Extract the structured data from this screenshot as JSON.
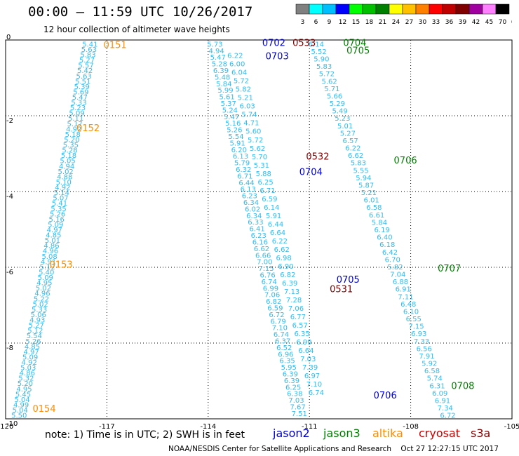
{
  "header": {
    "title": "00:00 – 11:59 UTC 10/26/2017",
    "subtitle": "12 hour collection of altimeter wave heights"
  },
  "colorbar": {
    "colors": [
      "#808080",
      "#00ffff",
      "#00bfff",
      "#0000ff",
      "#00ff00",
      "#00c000",
      "#008000",
      "#ffff00",
      "#ffc000",
      "#ff8000",
      "#ff0000",
      "#c00000",
      "#800000",
      "#a000a0",
      "#ff80ff",
      "#000000"
    ],
    "labels": [
      "3",
      "6",
      "9",
      "12",
      "15",
      "18",
      "21",
      "24",
      "27",
      "30",
      "33",
      "36",
      "39",
      "42",
      "45",
      "70",
      "(ft)"
    ]
  },
  "satellites": [
    {
      "name": "jason2",
      "color": "#0000cc"
    },
    {
      "name": "jason3",
      "color": "#008000"
    },
    {
      "name": "altika",
      "color": "#ff8c00"
    },
    {
      "name": "cryosat",
      "color": "#cc0000"
    },
    {
      "name": "s3a",
      "color": "#800000"
    }
  ],
  "footer": {
    "note": "note:  1) Time is in UTC;  2) SWH is in feet",
    "credit": "NOAA/NESDIS Center for Satellite Applications and Research    Oct 27 12:27:15 UTC 2017"
  },
  "chart_data": {
    "type": "scatter",
    "xlim": [
      -120,
      -105
    ],
    "ylim": [
      -10,
      0
    ],
    "x_ticks": [
      -120,
      -117,
      -114,
      -111,
      -108,
      -105
    ],
    "y_ticks": [
      0,
      -2,
      -4,
      -6,
      -8,
      -10
    ],
    "grid": true,
    "track_point_color": "#33bbee",
    "tracks": [
      {
        "name": "altika-left",
        "lon0": -117.5,
        "lat0": -0.1,
        "lon1": -119.6,
        "lat1": -9.9,
        "values": [
          "5.41",
          "5.63",
          "5.83",
          "5.27",
          "5.57",
          "5.42",
          "5.63",
          "5.51",
          "5.39",
          "5.69",
          "5.47",
          "5.33",
          "5.23",
          "5.09",
          "5.11",
          "5.17",
          "4.92",
          "5.18",
          "5.20",
          "5.35",
          "5.28",
          "5.18",
          "5.05",
          "4.94",
          "5.02",
          "4.88",
          "5.10",
          "4.92",
          "5.14",
          "5.07",
          "5.41",
          "5.35",
          "5.26",
          "5.16",
          "5.09",
          "4.97",
          "4.85",
          "5.01",
          "4.86",
          "4.96",
          "5.08",
          "4.91",
          "5.12",
          "5.40",
          "5.09",
          "4.95",
          "5.02",
          "4.96",
          "5.22",
          "5.02",
          "5.33",
          "5.06",
          "4.93",
          "5.27",
          "5.12",
          "5.54",
          "5.26",
          "4.85",
          "4.97",
          "5.09",
          "4.92",
          "5.03",
          "4.86",
          "5.32",
          "5.20",
          "4.95",
          "5.45",
          "5.04",
          "4.99",
          "5.04",
          "5.50"
        ]
      },
      {
        "name": "track-center",
        "lon0": -113.8,
        "lat0": -0.1,
        "lon1": -111.3,
        "lat1": -9.85,
        "values": [
          "5.73",
          "4.94",
          "5.47",
          "5.28",
          "6.39",
          "5.48",
          "5.84",
          "5.99",
          "5.61",
          "5.37",
          "5.24",
          "5.47",
          "5.16",
          "5.26",
          "5.54",
          "5.91",
          "6.20",
          "6.13",
          "5.79",
          "6.32",
          "6.71",
          "6.44",
          "6.13",
          "6.23",
          "6.34",
          "6.02",
          "6.34",
          "6.33",
          "6.41",
          "6.23",
          "6.16",
          "6.62",
          "6.66",
          "7.00",
          "7.15",
          "6.76",
          "6.74",
          "6.99",
          "7.06",
          "6.82",
          "6.59",
          "6.72",
          "6.79",
          "7.10",
          "6.74",
          "6.37",
          "6.52",
          "6.96",
          "6.35",
          "5.95",
          "6.39",
          "6.39",
          "6.25",
          "6.38",
          "7.03",
          "7.67",
          "7.51"
        ]
      },
      {
        "name": "track-center-inner",
        "lon0": -113.2,
        "lat0": -0.4,
        "lon1": -110.8,
        "lat1": -9.3,
        "values": [
          "6.22",
          "6.00",
          "6.04",
          "5.72",
          "5.82",
          "5.21",
          "6.03",
          "5.74",
          "4.71",
          "5.60",
          "5.72",
          "5.62",
          "5.70",
          "5.31",
          "5.88",
          "6.25",
          "6.71",
          "6.59",
          "6.14",
          "5.91",
          "6.44",
          "6.64",
          "6.22",
          "6.62",
          "6.98",
          "6.90",
          "6.82",
          "6.39",
          "7.13",
          "7.28",
          "7.06",
          "6.77",
          "6.57",
          "6.35",
          "6.99",
          "6.64",
          "7.03",
          "7.39",
          "6.97",
          "7.10",
          "6.74"
        ]
      },
      {
        "name": "jason3-right",
        "lon0": -110.8,
        "lat0": -0.1,
        "lon1": -106.9,
        "lat1": -9.9,
        "values": [
          "6.14",
          "5.52",
          "5.90",
          "5.83",
          "5.72",
          "5.62",
          "5.71",
          "5.66",
          "5.29",
          "5.49",
          "5.23",
          "5.01",
          "5.27",
          "6.57",
          "6.22",
          "6.62",
          "5.83",
          "5.55",
          "5.94",
          "5.87",
          "5.21",
          "6.01",
          "6.58",
          "6.61",
          "5.84",
          "6.19",
          "6.40",
          "6.18",
          "6.42",
          "6.70",
          "5.82",
          "7.04",
          "6.88",
          "6.91",
          "7.11",
          "6.48",
          "6.10",
          "6.55",
          "7.15",
          "6.93",
          "7.33",
          "6.56",
          "7.91",
          "5.92",
          "6.58",
          "5.74",
          "6.31",
          "6.09",
          "6.91",
          "7.34",
          "6.72"
        ]
      }
    ],
    "pass_labels": [
      {
        "text": "0151",
        "lon": -117.1,
        "lat": -0.1,
        "color": "#ff8c00"
      },
      {
        "text": "0152",
        "lon": -117.9,
        "lat": -2.3,
        "color": "#ff8c00"
      },
      {
        "text": "0153",
        "lon": -118.7,
        "lat": -5.9,
        "color": "#ff8c00"
      },
      {
        "text": "0154",
        "lon": -119.2,
        "lat": -9.7,
        "color": "#ff8c00"
      },
      {
        "text": "0702",
        "lon": -112.4,
        "lat": -0.05,
        "color": "#0000cc"
      },
      {
        "text": "0533",
        "lon": -111.5,
        "lat": -0.05,
        "color": "#800000"
      },
      {
        "text": "0703",
        "lon": -112.3,
        "lat": -0.4,
        "color": "#0000cc"
      },
      {
        "text": "0704",
        "lon": -110.0,
        "lat": -0.05,
        "color": "#008000"
      },
      {
        "text": "0705",
        "lon": -109.9,
        "lat": -0.25,
        "color": "#008000"
      },
      {
        "text": "0532",
        "lon": -111.1,
        "lat": -3.05,
        "color": "#800000"
      },
      {
        "text": "0704",
        "lon": -111.3,
        "lat": -3.45,
        "color": "#0000cc"
      },
      {
        "text": "0706",
        "lon": -108.5,
        "lat": -3.15,
        "color": "#008000"
      },
      {
        "text": "0707",
        "lon": -107.2,
        "lat": -6.0,
        "color": "#008000"
      },
      {
        "text": "0705",
        "lon": -110.2,
        "lat": -6.3,
        "color": "#0000cc"
      },
      {
        "text": "0531",
        "lon": -110.4,
        "lat": -6.55,
        "color": "#800000"
      },
      {
        "text": "0708",
        "lon": -106.8,
        "lat": -9.1,
        "color": "#008000"
      },
      {
        "text": "0706",
        "lon": -109.1,
        "lat": -9.35,
        "color": "#0000cc"
      }
    ]
  }
}
